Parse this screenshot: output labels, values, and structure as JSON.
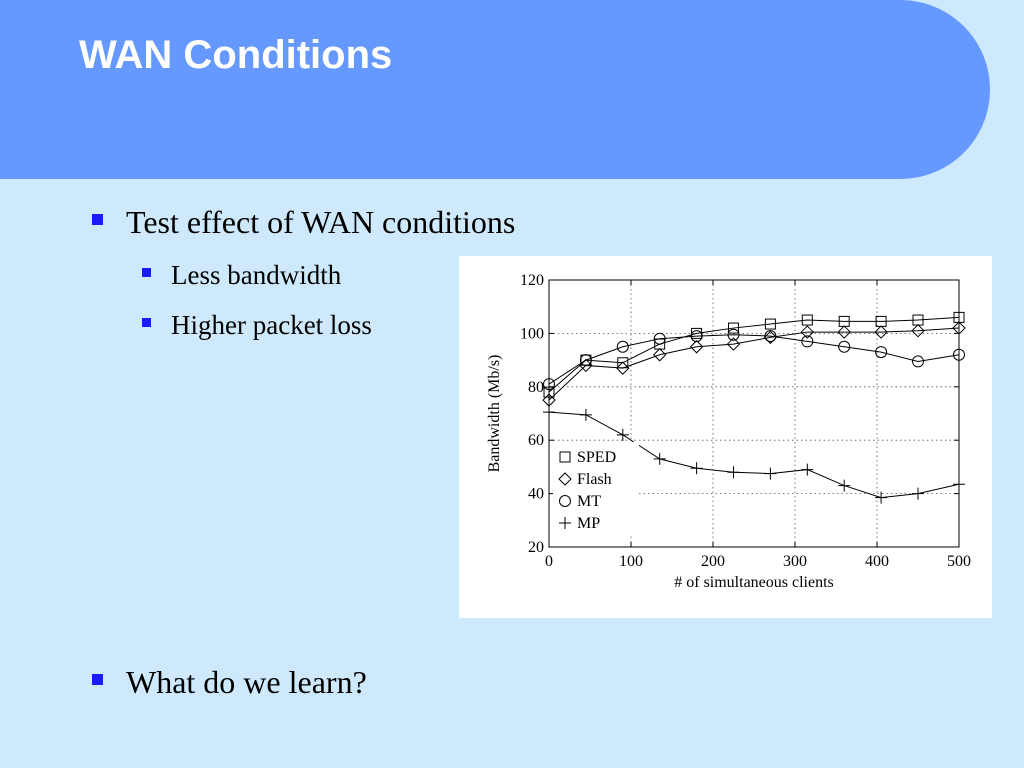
{
  "slide": {
    "title": "WAN Conditions",
    "bullets": [
      {
        "text": "Test effect of WAN conditions",
        "level": 1
      },
      {
        "text": "Less bandwidth",
        "level": 2
      },
      {
        "text": "Higher packet loss",
        "level": 2
      },
      {
        "text": "What do we learn?",
        "level": 1
      }
    ]
  },
  "theme": {
    "header_color": "#6699ff",
    "background_color": "#cde9fb",
    "bullet_color": "#1a1aff",
    "title_color": "#ffffff"
  },
  "chart_data": {
    "type": "line",
    "xlabel": "# of simultaneous clients",
    "ylabel": "Bandwidth (Mb/s)",
    "xlim": [
      0,
      500
    ],
    "ylim": [
      20,
      120
    ],
    "xticks": [
      0,
      100,
      200,
      300,
      400,
      500
    ],
    "yticks": [
      20,
      40,
      60,
      80,
      100,
      120
    ],
    "grid": true,
    "legend_position": "lower-left",
    "x": [
      0,
      45,
      90,
      135,
      180,
      225,
      270,
      315,
      360,
      405,
      450,
      500
    ],
    "series": [
      {
        "name": "SPED",
        "marker": "square",
        "values": [
          78,
          90,
          89,
          96,
          100,
          102,
          103.5,
          105,
          104.5,
          104.5,
          105,
          106
        ]
      },
      {
        "name": "Flash",
        "marker": "diamond",
        "values": [
          75,
          88,
          87,
          92,
          95,
          96,
          98.5,
          100.5,
          100.5,
          100.5,
          101,
          102
        ]
      },
      {
        "name": "MT",
        "marker": "circle",
        "values": [
          81,
          90,
          95,
          98,
          99,
          99.5,
          99,
          97,
          95,
          93,
          89.5,
          92
        ]
      },
      {
        "name": "MP",
        "marker": "plus",
        "values": [
          70.5,
          69.5,
          62,
          53,
          49.5,
          48,
          47.5,
          49,
          43,
          38.5,
          40,
          43.5
        ]
      }
    ]
  }
}
